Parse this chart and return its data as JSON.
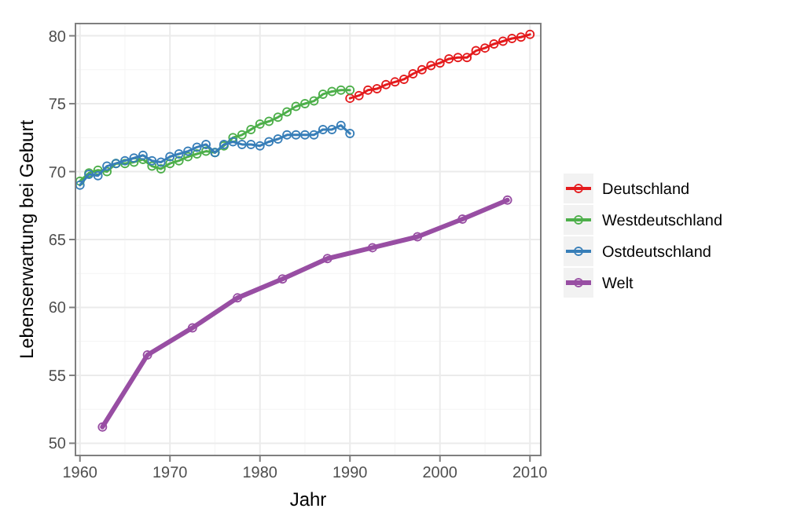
{
  "chart_data": {
    "type": "line",
    "xlabel": "Jahr",
    "ylabel": "Lebenserwartung bei Geburt",
    "xlim": [
      1959.5,
      2011.2
    ],
    "ylim": [
      49.1,
      80.9
    ],
    "xticks": [
      1960,
      1970,
      1980,
      1990,
      2000,
      2010
    ],
    "yticks": [
      50,
      55,
      60,
      65,
      70,
      75,
      80
    ],
    "grid": true,
    "legend": "right",
    "marker": "circle",
    "line_style": "solid",
    "series": [
      {
        "name": "Deutschland",
        "color": "#e41a1c",
        "x": [
          1990,
          1991,
          1992,
          1993,
          1994,
          1995,
          1996,
          1997,
          1998,
          1999,
          2000,
          2001,
          2002,
          2003,
          2004,
          2005,
          2006,
          2007,
          2008,
          2009,
          2010
        ],
        "values": [
          75.4,
          75.6,
          76.0,
          76.1,
          76.4,
          76.6,
          76.8,
          77.2,
          77.5,
          77.8,
          78.0,
          78.3,
          78.4,
          78.4,
          78.9,
          79.1,
          79.4,
          79.6,
          79.8,
          79.9,
          80.1
        ]
      },
      {
        "name": "Westdeutschland",
        "color": "#4daf4a",
        "x": [
          1960,
          1961,
          1962,
          1963,
          1964,
          1965,
          1966,
          1967,
          1968,
          1969,
          1970,
          1971,
          1972,
          1973,
          1974,
          1975,
          1976,
          1977,
          1978,
          1979,
          1980,
          1981,
          1982,
          1983,
          1984,
          1985,
          1986,
          1987,
          1988,
          1989,
          1990
        ],
        "values": [
          69.3,
          69.9,
          70.1,
          70.0,
          70.6,
          70.6,
          70.7,
          70.9,
          70.4,
          70.2,
          70.6,
          70.8,
          71.1,
          71.3,
          71.5,
          71.4,
          71.9,
          72.5,
          72.7,
          73.1,
          73.5,
          73.7,
          74.0,
          74.4,
          74.8,
          75.0,
          75.2,
          75.7,
          75.9,
          76.0,
          76.0
        ]
      },
      {
        "name": "Ostdeutschland",
        "color": "#377eb8",
        "x": [
          1960,
          1961,
          1962,
          1963,
          1964,
          1965,
          1966,
          1967,
          1968,
          1969,
          1970,
          1971,
          1972,
          1973,
          1974,
          1975,
          1976,
          1977,
          1978,
          1979,
          1980,
          1981,
          1982,
          1983,
          1984,
          1985,
          1986,
          1987,
          1988,
          1989,
          1990
        ],
        "values": [
          69.0,
          69.8,
          69.7,
          70.4,
          70.6,
          70.8,
          71.0,
          71.2,
          70.8,
          70.7,
          71.1,
          71.3,
          71.5,
          71.8,
          72.0,
          71.4,
          72.0,
          72.2,
          72.0,
          72.0,
          71.9,
          72.2,
          72.4,
          72.7,
          72.7,
          72.7,
          72.7,
          73.1,
          73.1,
          73.4,
          72.8
        ]
      },
      {
        "name": "Welt",
        "color": "#984ea3",
        "x": [
          1962.5,
          1967.5,
          1972.5,
          1977.5,
          1982.5,
          1987.5,
          1992.5,
          1997.5,
          2002.5,
          2007.5
        ],
        "values": [
          51.2,
          56.5,
          58.5,
          60.7,
          62.1,
          63.6,
          64.4,
          65.2,
          66.5,
          67.9
        ]
      }
    ]
  }
}
